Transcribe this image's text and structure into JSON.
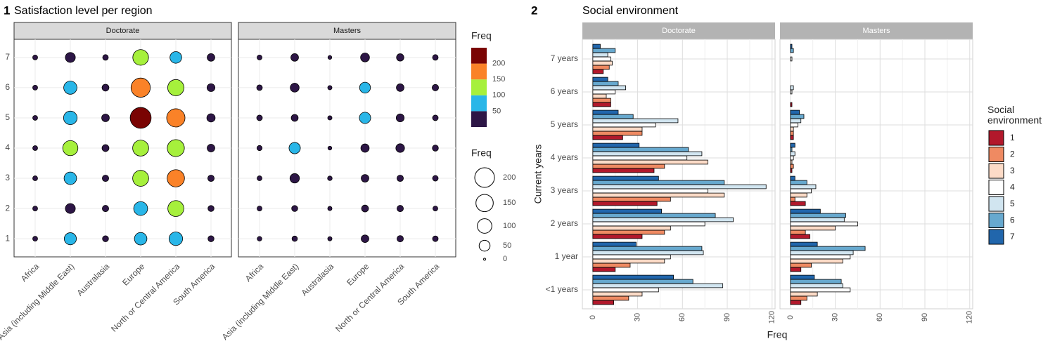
{
  "chart_data": [
    {
      "type": "bubble",
      "panel_label": "1",
      "title": "Satisfaction level per region",
      "categories": [
        "Africa",
        "Asia (including Middle East)",
        "Australasia",
        "Europe",
        "North or Central America",
        "South America"
      ],
      "yticks": [
        1,
        2,
        3,
        4,
        5,
        6,
        7
      ],
      "ylim": [
        0.4,
        7.6
      ],
      "grid": true,
      "facets": [
        {
          "name": "Doctorate",
          "values": [
            [
              5,
              5,
              5,
              5,
              5,
              5,
              5
            ],
            [
              65,
              40,
              70,
              110,
              85,
              80,
              40
            ],
            [
              10,
              12,
              12,
              15,
              20,
              15,
              8
            ],
            [
              70,
              90,
              125,
              125,
              230,
              190,
              120
            ],
            [
              85,
              125,
              150,
              145,
              170,
              130,
              60
            ],
            [
              10,
              10,
              12,
              20,
              25,
              22,
              20
            ]
          ]
        },
        {
          "name": "Masters",
          "values": [
            [
              4,
              5,
              5,
              6,
              8,
              8,
              5
            ],
            [
              7,
              10,
              35,
              55,
              15,
              30,
              20
            ],
            [
              3,
              3,
              4,
              2,
              3,
              3,
              2
            ],
            [
              20,
              15,
              20,
              25,
              55,
              50,
              30
            ],
            [
              12,
              12,
              12,
              28,
              22,
              20,
              18
            ],
            [
              8,
              5,
              8,
              10,
              8,
              12,
              8
            ]
          ]
        }
      ],
      "color_legend": {
        "title": "Freq",
        "ticks": [
          50,
          100,
          150,
          200
        ],
        "colors": [
          "#2d1646",
          "#29b6e8",
          "#a6f03c",
          "#fa8228",
          "#7a0403"
        ]
      },
      "size_legend": {
        "title": "Freq",
        "values": [
          200,
          150,
          100,
          50,
          0
        ]
      }
    },
    {
      "type": "bar",
      "orientation": "horizontal",
      "panel_label": "2",
      "title": "Social environment",
      "y_label": "Current years",
      "x_label": "Freq",
      "legend_title": "Social environment",
      "categories": [
        "<1 years",
        "1 year",
        "2 years",
        "3 years",
        "4 years",
        "5 years",
        "6 years",
        "7 years"
      ],
      "xlim": [
        -7,
        122
      ],
      "xticks": [
        0,
        30,
        60,
        90,
        120
      ],
      "grid": true,
      "series": [
        {
          "name": "1",
          "color": "#b2182b"
        },
        {
          "name": "2",
          "color": "#ef8a62"
        },
        {
          "name": "3",
          "color": "#fddbc7"
        },
        {
          "name": "4",
          "color": "#ffffff"
        },
        {
          "name": "5",
          "color": "#d1e5f0"
        },
        {
          "name": "6",
          "color": "#67a9cf"
        },
        {
          "name": "7",
          "color": "#2166ac"
        }
      ],
      "facets": [
        {
          "name": "Doctorate",
          "values": [
            [
              14,
              15,
              33,
              43,
              41,
              20,
              12,
              7
            ],
            [
              24,
              25,
              48,
              52,
              48,
              33,
              12,
              11
            ],
            [
              33,
              48,
              52,
              88,
              77,
              33,
              9,
              13
            ],
            [
              44,
              52,
              75,
              77,
              63,
              42,
              15,
              12
            ],
            [
              87,
              74,
              94,
              116,
              73,
              57,
              22,
              10
            ],
            [
              67,
              73,
              82,
              88,
              64,
              27,
              17,
              15
            ],
            [
              54,
              29,
              46,
              44,
              31,
              17,
              10,
              5
            ]
          ]
        },
        {
          "name": "Masters",
          "values": [
            [
              7,
              7,
              13,
              10,
              1,
              2,
              1,
              0
            ],
            [
              11,
              14,
              10,
              3,
              2,
              2,
              0,
              0
            ],
            [
              18,
              35,
              30,
              11,
              1,
              2,
              0,
              0
            ],
            [
              40,
              40,
              45,
              14,
              2,
              5,
              1,
              1
            ],
            [
              35,
              42,
              36,
              17,
              3,
              7,
              2,
              0
            ],
            [
              34,
              50,
              37,
              11,
              1,
              9,
              0,
              2
            ],
            [
              16,
              18,
              20,
              3,
              3,
              6,
              0,
              1
            ]
          ]
        }
      ]
    }
  ]
}
